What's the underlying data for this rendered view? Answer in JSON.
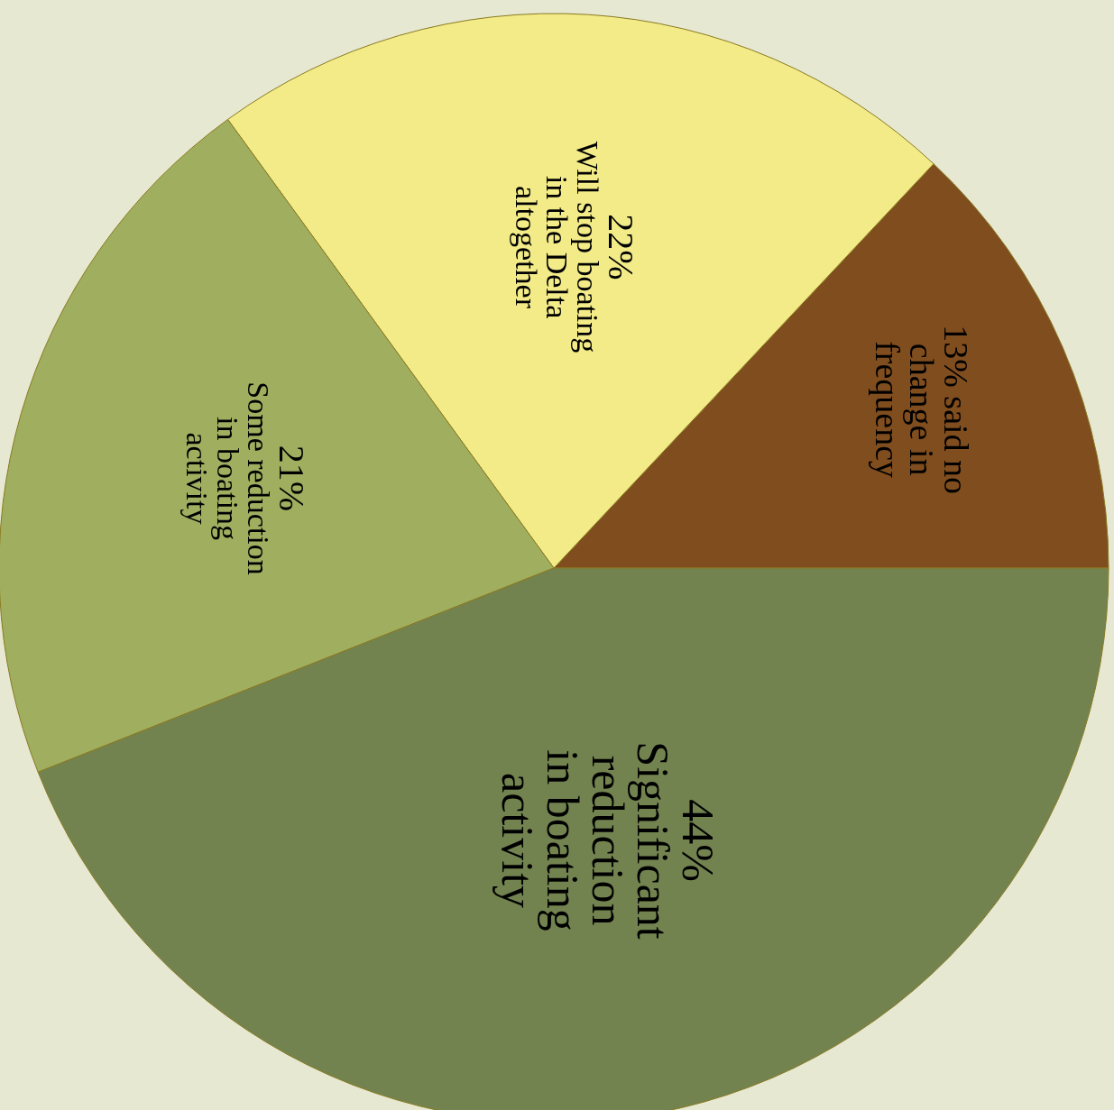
{
  "chart_data": {
    "type": "pie",
    "categories": [
      "said no change in frequency",
      "Will stop boating in the Delta altogether",
      "Some reduction in boating activity",
      "Significant reduction in boating activity"
    ],
    "values": [
      13,
      22,
      21,
      44
    ],
    "colors": [
      "#804d1e",
      "#f2eb88",
      "#a0ae5f",
      "#738350"
    ],
    "value_labels": [
      "13%",
      "22%",
      "21%",
      "44%"
    ]
  }
}
